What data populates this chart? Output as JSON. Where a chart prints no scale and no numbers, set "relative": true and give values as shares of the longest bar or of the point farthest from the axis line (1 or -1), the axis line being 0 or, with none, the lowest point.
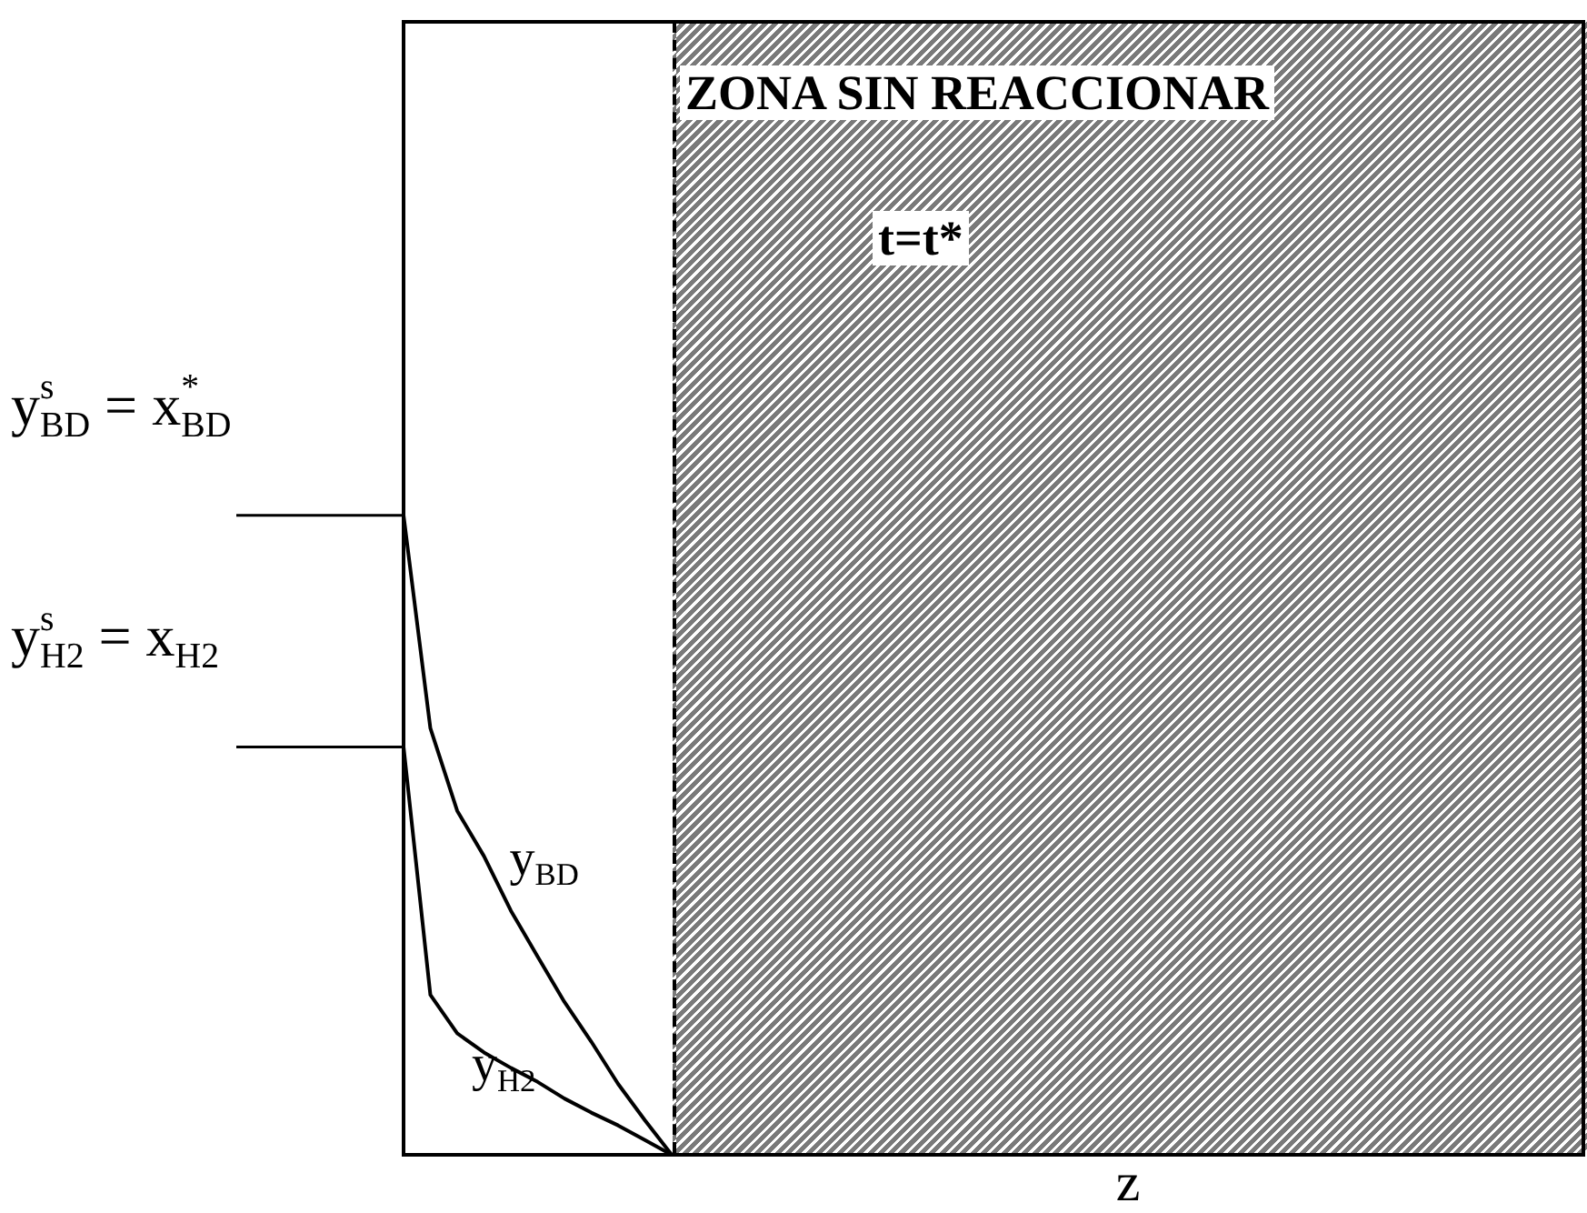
{
  "chart_data": {
    "type": "line",
    "xlabel": "z",
    "categories": [
      null,
      null,
      null,
      null,
      null,
      null,
      null,
      null,
      null,
      null,
      null,
      null,
      null,
      null,
      null,
      null,
      null,
      null,
      null,
      null,
      null,
      null,
      null,
      null,
      null,
      null,
      null,
      null,
      null,
      null,
      null,
      null,
      null,
      null,
      null,
      null,
      null,
      null,
      null,
      null,
      null,
      null,
      null,
      null,
      null
    ],
    "relative": true,
    "ref_lines": [
      {
        "axis": "y",
        "value": 1,
        "label": "y$^{s}$$_{BD}$ = x$^{*}$$_{BD}$"
      },
      {
        "axis": "y",
        "value": 0.638,
        "label": "y$^{s}$$_{H2}$ = x$_{H2}$"
      }
    ],
    "legend": false,
    "grid": false,
    "marker": "none",
    "series": [
      {
        "name": "y$_{BD}$",
        "color": "#000000",
        "values": [
          1,
          0.667,
          0.538,
          0.467,
          0.382,
          0.31,
          0.239,
          0.177,
          0.111,
          0.054,
          0,
          null,
          null,
          null,
          null,
          null,
          null,
          null,
          null,
          null,
          null,
          null,
          null,
          null,
          null,
          null,
          null,
          null,
          null,
          null,
          null,
          null,
          null,
          null,
          null,
          null,
          null,
          null,
          null,
          null,
          null,
          null,
          null,
          null,
          null
        ]
      },
      {
        "name": "y$_{H2}$",
        "color": "#000000",
        "values": [
          0.638,
          0.25,
          0.19,
          0.16,
          0.136,
          0.114,
          0.088,
          0.066,
          0.046,
          0.023,
          0,
          null,
          null,
          null,
          null,
          null,
          null,
          null,
          null,
          null,
          null,
          null,
          null,
          null,
          null,
          null,
          null,
          null,
          null,
          null,
          null,
          null,
          null,
          null,
          null,
          null,
          null,
          null,
          null,
          null,
          null,
          null,
          null,
          null,
          null
        ]
      }
    ],
    "annotations": [
      "ZONA SIN REACCIONAR",
      "t=t*"
    ]
  }
}
